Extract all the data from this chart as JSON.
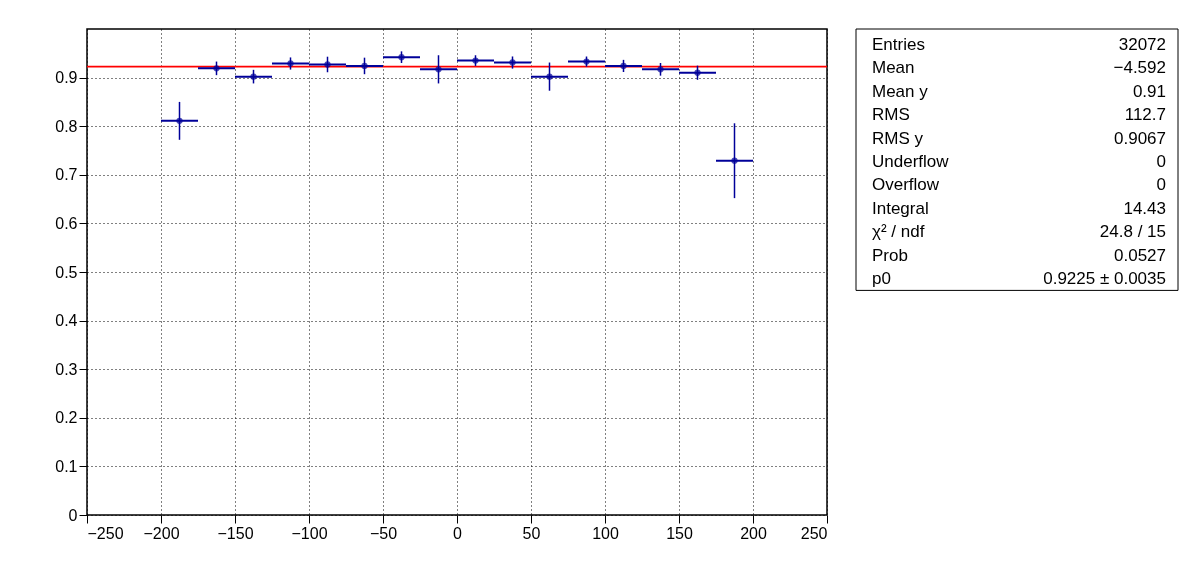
{
  "chart_data": {
    "type": "scatter",
    "x": [
      -187.5,
      -162.5,
      -137.5,
      -112.5,
      -87.5,
      -62.5,
      -37.5,
      -12.5,
      12.5,
      37.5,
      62.5,
      87.5,
      112.5,
      137.5,
      162.5,
      187.5
    ],
    "series": [
      {
        "color": "#000099",
        "values": [
          0.811,
          0.919,
          0.902,
          0.929,
          0.927,
          0.924,
          0.942,
          0.917,
          0.935,
          0.931,
          0.902,
          0.933,
          0.924,
          0.917,
          0.91,
          0.729
        ],
        "errors": [
          0.039,
          0.014,
          0.014,
          0.0125,
          0.016,
          0.017,
          0.012,
          0.029,
          0.011,
          0.0125,
          0.029,
          0.0104,
          0.0125,
          0.013,
          0.0146,
          0.077
        ],
        "xerrors": [
          12.5,
          12.5,
          12.5,
          12.5,
          12.5,
          12.5,
          12.5,
          12.5,
          12.5,
          12.5,
          12.5,
          12.5,
          12.5,
          12.5,
          12.5,
          12.5
        ]
      },
      {
        "type": "line",
        "color": "#ff0000",
        "x": [
          -250,
          250
        ],
        "values": [
          0.9225,
          0.9225
        ]
      }
    ],
    "xlim": [
      -250,
      250
    ],
    "xticks": [
      -250,
      -200,
      -150,
      -100,
      -50,
      0,
      50,
      100,
      150,
      200,
      250
    ],
    "ylim": [
      0,
      1
    ],
    "yticks": [
      0,
      0.1,
      0.2,
      0.3,
      0.4,
      0.5,
      0.6,
      0.7,
      0.8,
      0.9
    ],
    "grid": true,
    "annotations": [
      "Entries",
      "32072",
      "Mean",
      "−4.592",
      "Mean y",
      "0.91",
      "RMS",
      "112.7",
      "RMS y",
      "0.9067",
      "Underflow",
      "0",
      "Overflow",
      "0",
      "Integral",
      "14.43",
      "χ² / ndf",
      "24.8 / 15",
      "Prob",
      "0.0527",
      "p0",
      "0.9225 ± 0.0035"
    ]
  }
}
